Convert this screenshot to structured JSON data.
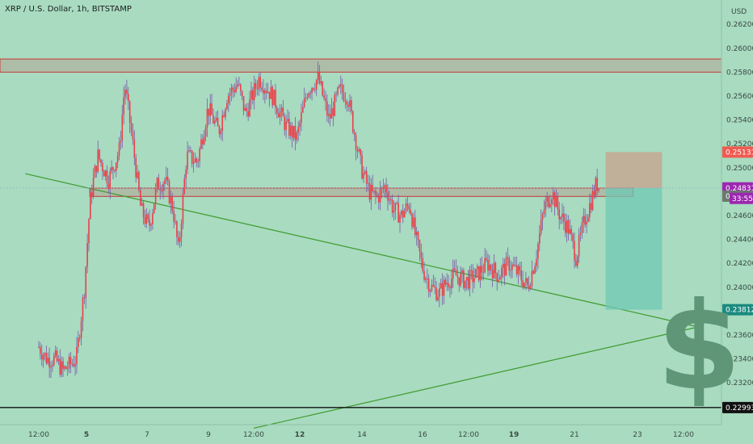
{
  "header": {
    "title": "XRP / U.S. Dollar, 1h, BITSTAMP"
  },
  "axis": {
    "currency": "USD"
  },
  "watermark": {
    "symbol": "$"
  },
  "colors": {
    "background": "#a8dbc0",
    "candle_up": "#e8404a",
    "candle_down": "#e8404a",
    "support_zone": "#c73a3a",
    "trendline": "#3f9a2e",
    "stop_zone": "#c8a08c",
    "target_zone": "#6fc8b4",
    "tag_red": "#f05a50",
    "tag_purple": "#9c27b0",
    "tag_grey": "#6e7770",
    "tag_teal": "#1a8a80",
    "tag_black": "#111111"
  },
  "chart_data": {
    "type": "candlestick",
    "symbol": "XRP / U.S. Dollar",
    "interval": "1h",
    "exchange": "BITSTAMP",
    "ylim": [
      0.2285,
      0.2637
    ],
    "y_ticks": [
      0.262,
      0.26,
      0.258,
      0.256,
      0.254,
      0.252,
      0.25,
      0.248,
      0.246,
      0.244,
      0.242,
      0.24,
      0.238,
      0.236,
      0.234,
      0.232
    ],
    "y_tick_labels": [
      "0.26200",
      "0.26000",
      "0.25800",
      "0.25600",
      "0.25400",
      "0.25200",
      "0.25000",
      "0.24800",
      "0.24600",
      "0.24400",
      "0.24200",
      "0.24000",
      "0.23800",
      "0.23600",
      "0.23400",
      "0.23200"
    ],
    "x_ticks": [
      {
        "label": "12:00",
        "t": 0
      },
      {
        "label": "5",
        "t": 1
      },
      {
        "label": "7",
        "t": 2
      },
      {
        "label": "9",
        "t": 3
      },
      {
        "label": "12:00",
        "t": 4
      },
      {
        "label": "12",
        "t": 5
      },
      {
        "label": "14",
        "t": 6
      },
      {
        "label": "16",
        "t": 7
      },
      {
        "label": "12:00",
        "t": 8
      },
      {
        "label": "19",
        "t": 9
      },
      {
        "label": "21",
        "t": 10
      },
      {
        "label": "23",
        "t": 11
      },
      {
        "label": "12:00",
        "t": 12
      }
    ],
    "x_tick_labels_bold": [
      "5",
      "12",
      "19"
    ],
    "path": [
      [
        0.0,
        0.235
      ],
      [
        0.15,
        0.234
      ],
      [
        0.3,
        0.234
      ],
      [
        0.45,
        0.233
      ],
      [
        0.7,
        0.234
      ],
      [
        0.85,
        0.24
      ],
      [
        0.95,
        0.247
      ],
      [
        1.0,
        0.2485
      ],
      [
        1.1,
        0.251
      ],
      [
        1.3,
        0.249
      ],
      [
        1.5,
        0.2515
      ],
      [
        1.6,
        0.257
      ],
      [
        1.75,
        0.252
      ],
      [
        1.9,
        0.2465
      ],
      [
        2.05,
        0.245
      ],
      [
        2.2,
        0.2485
      ],
      [
        2.35,
        0.249
      ],
      [
        2.5,
        0.2465
      ],
      [
        2.6,
        0.243
      ],
      [
        2.75,
        0.251
      ],
      [
        2.95,
        0.2505
      ],
      [
        3.15,
        0.255
      ],
      [
        3.35,
        0.253
      ],
      [
        3.5,
        0.256
      ],
      [
        3.7,
        0.257
      ],
      [
        3.85,
        0.2545
      ],
      [
        4.1,
        0.2575
      ],
      [
        4.35,
        0.256
      ],
      [
        4.6,
        0.2535
      ],
      [
        4.8,
        0.2525
      ],
      [
        5.0,
        0.2565
      ],
      [
        5.2,
        0.2575
      ],
      [
        5.4,
        0.254
      ],
      [
        5.6,
        0.2565
      ],
      [
        5.75,
        0.256
      ],
      [
        5.85,
        0.2535
      ],
      [
        6.0,
        0.25
      ],
      [
        6.15,
        0.248
      ],
      [
        6.3,
        0.2475
      ],
      [
        6.45,
        0.2485
      ],
      [
        6.6,
        0.2465
      ],
      [
        6.75,
        0.246
      ],
      [
        6.9,
        0.247
      ],
      [
        7.0,
        0.2445
      ],
      [
        7.15,
        0.2415
      ],
      [
        7.3,
        0.24
      ],
      [
        7.45,
        0.2395
      ],
      [
        7.6,
        0.2405
      ],
      [
        7.75,
        0.241
      ],
      [
        7.95,
        0.2405
      ],
      [
        8.15,
        0.241
      ],
      [
        8.35,
        0.242
      ],
      [
        8.55,
        0.241
      ],
      [
        8.75,
        0.242
      ],
      [
        8.95,
        0.241
      ],
      [
        9.1,
        0.24
      ],
      [
        9.25,
        0.2425
      ],
      [
        9.4,
        0.2465
      ],
      [
        9.55,
        0.248
      ],
      [
        9.7,
        0.246
      ],
      [
        9.85,
        0.245
      ],
      [
        10.0,
        0.2425
      ],
      [
        10.15,
        0.2455
      ],
      [
        10.3,
        0.2475
      ],
      [
        10.38,
        0.2487
      ],
      [
        10.45,
        0.24831
      ]
    ],
    "zones": [
      {
        "name": "resistance",
        "low": 0.258,
        "high": 0.2591
      },
      {
        "name": "support",
        "low": 0.2476,
        "high": 0.2483
      }
    ],
    "trendlines": [
      {
        "from": [
          -0.25,
          0.2495
        ],
        "to": [
          12.25,
          0.2367
        ]
      },
      {
        "from": [
          4.0,
          0.2282
        ],
        "to": [
          12.3,
          0.2367
        ]
      }
    ],
    "horizontal_lines": [
      0.22993
    ],
    "position": {
      "type": "short",
      "entry": 0.24831,
      "stop": 0.25131,
      "target": 0.23812,
      "t_start": 10.55,
      "t_end": 11.6
    },
    "price_tags": [
      {
        "value": 0.25131,
        "label": "0.25131",
        "color": "tag_red"
      },
      {
        "value": 0.24831,
        "label": "0.24831",
        "color": "tag_purple"
      },
      {
        "value": 0.24762,
        "label": "0.24762",
        "color": "tag_grey"
      },
      {
        "value": 0.23812,
        "label": "0.23812",
        "color": "tag_teal"
      },
      {
        "value": 0.22993,
        "label": "0.22993",
        "color": "tag_black"
      }
    ],
    "countdown": {
      "label": "33:55",
      "color": "tag_purple"
    }
  }
}
